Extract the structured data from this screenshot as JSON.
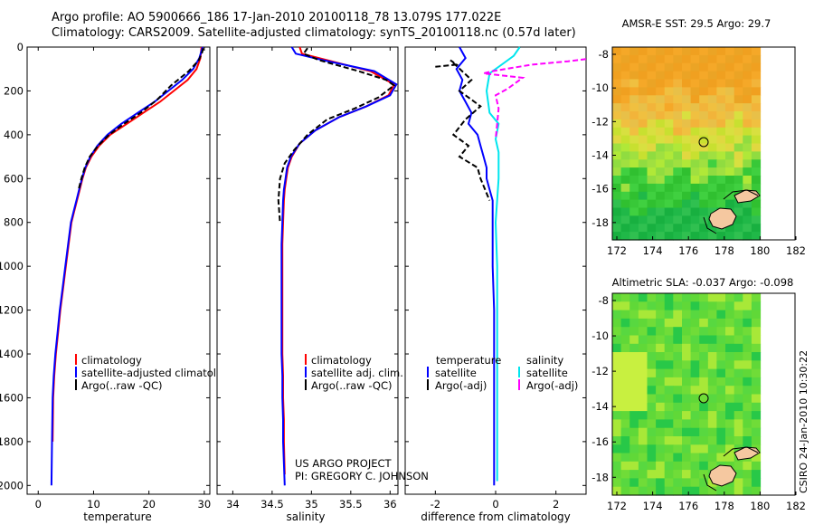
{
  "figure": {
    "title_line1": "Argo profile: AO 5900666_186 17-Jan-2010 20100118_78 13.079S 177.022E",
    "title_line2": "Climatology: CARS2009. Satellite-adjusted climatology: synTS_20100118.nc (0.57d later)",
    "credit_line1": "US ARGO PROJECT",
    "credit_line2": "PI: GREGORY C. JOHNSON",
    "stamp": "CSIRO 24-Jan-2010 10:30:22"
  },
  "colors": {
    "climatology": "#ff0000",
    "satellite": "#0000ff",
    "argo": "#000000",
    "salinity_satellite": "#00e5ee",
    "salinity_argo": "#ff00ff",
    "land": "#f5c8a0"
  },
  "chart_data": [
    {
      "type": "line",
      "id": "temperature",
      "xlabel": "temperature",
      "ylabel": "",
      "xlim": [
        -2,
        31
      ],
      "ylim": [
        2040,
        0
      ],
      "xticks": [
        "0",
        "10",
        "20",
        "30"
      ],
      "yticks": [
        "0",
        "200",
        "400",
        "600",
        "800",
        "1000",
        "1200",
        "1400",
        "1600",
        "1800",
        "2000"
      ],
      "legend": [
        "climatology",
        "satellite-adjusted climatology",
        "Argo(..raw -QC)"
      ],
      "series": [
        {
          "name": "climatology",
          "color": "#ff0000",
          "dash": "",
          "x": [
            29.5,
            29.3,
            28.6,
            27,
            24.5,
            22,
            19,
            16,
            13,
            11,
            9.6,
            8.6,
            8,
            7.5,
            7,
            6.5,
            6,
            5.5,
            5,
            4.5,
            4,
            3.6,
            3.2,
            2.9,
            2.7,
            2.6
          ],
          "y": [
            0,
            50,
            100,
            150,
            200,
            250,
            300,
            350,
            400,
            450,
            500,
            550,
            600,
            650,
            700,
            750,
            800,
            900,
            1000,
            1100,
            1200,
            1300,
            1400,
            1500,
            1600,
            1800
          ]
        },
        {
          "name": "satellite-adjusted climatology",
          "color": "#0000ff",
          "dash": "",
          "x": [
            29.7,
            29.1,
            28,
            26,
            23.5,
            21,
            18,
            15,
            12.5,
            10.7,
            9.4,
            8.5,
            7.9,
            7.4,
            6.9,
            6.4,
            5.9,
            5.4,
            4.9,
            4.4,
            3.9,
            3.5,
            3.1,
            2.8,
            2.6,
            2.5,
            2.4
          ],
          "y": [
            0,
            50,
            100,
            150,
            200,
            250,
            300,
            350,
            400,
            450,
            500,
            550,
            600,
            650,
            700,
            750,
            800,
            900,
            1000,
            1100,
            1200,
            1300,
            1400,
            1500,
            1600,
            1800,
            2000
          ]
        },
        {
          "name": "Argo(..raw -QC)",
          "color": "#000000",
          "dash": "6,3",
          "x": [
            29.8,
            29.6,
            29,
            27.2,
            24,
            21.5,
            18.5,
            15.5,
            12.8,
            10.8,
            9.3,
            8.4,
            7.8,
            7.3
          ],
          "y": [
            5,
            25,
            60,
            110,
            175,
            240,
            300,
            350,
            400,
            450,
            500,
            550,
            600,
            650
          ]
        }
      ]
    },
    {
      "type": "line",
      "id": "salinity",
      "xlabel": "salinity",
      "ylabel": "",
      "xlim": [
        33.8,
        36.1
      ],
      "ylim": [
        2040,
        0
      ],
      "xticks": [
        "34",
        "34.5",
        "35",
        "35.5",
        "36"
      ],
      "legend": [
        "climatology",
        "satellite adj. clim.",
        "Argo(..raw -QC)"
      ],
      "series": [
        {
          "name": "climatology",
          "color": "#ff0000",
          "dash": "",
          "x": [
            34.85,
            34.88,
            35.2,
            35.75,
            36.05,
            35.98,
            35.7,
            35.35,
            35.05,
            34.85,
            34.75,
            34.7,
            34.68,
            34.66,
            34.65,
            34.64,
            34.63,
            34.63,
            34.63,
            34.63,
            34.64,
            34.64,
            34.65,
            34.65,
            34.66
          ],
          "y": [
            0,
            30,
            60,
            110,
            170,
            220,
            270,
            320,
            380,
            440,
            500,
            550,
            600,
            650,
            700,
            800,
            900,
            1000,
            1200,
            1400,
            1500,
            1600,
            1700,
            1800,
            1950
          ]
        },
        {
          "name": "satellite adj. clim.",
          "color": "#0000ff",
          "dash": "",
          "x": [
            34.75,
            34.8,
            35.15,
            35.8,
            36.08,
            36,
            35.7,
            35.35,
            35.05,
            34.85,
            34.74,
            34.69,
            34.67,
            34.65,
            34.64,
            34.63,
            34.62,
            34.62,
            34.62,
            34.62,
            34.63,
            34.63,
            34.64,
            34.64,
            34.65,
            34.66
          ],
          "y": [
            0,
            30,
            60,
            110,
            170,
            220,
            270,
            320,
            380,
            440,
            500,
            550,
            600,
            650,
            700,
            800,
            900,
            1000,
            1200,
            1400,
            1500,
            1600,
            1700,
            1800,
            1900,
            2000
          ]
        },
        {
          "name": "Argo(..raw -QC)",
          "color": "#000000",
          "dash": "6,3",
          "x": [
            34.95,
            34.9,
            35.1,
            35.6,
            35.95,
            36.05,
            35.85,
            35.55,
            35.2,
            34.95,
            34.78,
            34.66,
            34.6,
            34.58,
            34.6
          ],
          "y": [
            5,
            30,
            60,
            110,
            150,
            175,
            230,
            280,
            330,
            400,
            470,
            530,
            600,
            700,
            800
          ]
        }
      ]
    },
    {
      "type": "line",
      "id": "difference",
      "xlabel": "difference from climatology",
      "ylabel": "",
      "xlim": [
        -3,
        3
      ],
      "ylim": [
        2040,
        0
      ],
      "xticks": [
        "-2",
        "0",
        "2"
      ],
      "legend_temperature": [
        "temperature",
        "satellite",
        "Argo(-adj)"
      ],
      "legend_salinity": [
        "salinity",
        "satellite",
        "Argo(-adj)"
      ],
      "series": [
        {
          "name": "temperature satellite",
          "color": "#0000ff",
          "dash": "",
          "x": [
            -1.2,
            -1.0,
            -1.3,
            -1.1,
            -1.2,
            -1.0,
            -0.8,
            -0.9,
            -0.6,
            -0.5,
            -0.4,
            -0.3,
            -0.3,
            -0.2,
            -0.1,
            -0.1,
            -0.1,
            -0.05,
            -0.05,
            -0.05,
            -0.05,
            -0.05
          ],
          "y": [
            0,
            50,
            100,
            150,
            200,
            250,
            300,
            350,
            400,
            450,
            500,
            550,
            600,
            650,
            700,
            800,
            1000,
            1200,
            1400,
            1600,
            1800,
            2000
          ]
        },
        {
          "name": "temperature Argo(-adj)",
          "color": "#000000",
          "dash": "6,3",
          "x": [
            -2.0,
            -1.3,
            -1.5,
            -0.8,
            -1.2,
            -0.5,
            -1.0,
            -1.4,
            -0.9,
            -1.2,
            -0.6,
            -0.5,
            -0.2
          ],
          "y": [
            90,
            80,
            60,
            150,
            200,
            270,
            330,
            400,
            450,
            500,
            550,
            600,
            700
          ]
        },
        {
          "name": "salinity satellite",
          "color": "#00e5ee",
          "dash": "",
          "x": [
            0.8,
            0.6,
            0.3,
            -0.2,
            -0.3,
            -0.2,
            0.1,
            0.0,
            0.1,
            0.1,
            0.0,
            0.05,
            0.05,
            0.05,
            0.05,
            0.05
          ],
          "y": [
            0,
            40,
            70,
            120,
            200,
            300,
            350,
            420,
            480,
            600,
            800,
            1000,
            1200,
            1500,
            1800,
            1980
          ]
        },
        {
          "name": "salinity Argo(-adj)",
          "color": "#ff00ff",
          "dash": "6,3",
          "x": [
            3.0,
            2.4,
            1.2,
            -0.1,
            -0.4,
            0.9,
            0.4,
            0.0,
            0.1,
            0.05,
            0.0
          ],
          "y": [
            55,
            65,
            80,
            110,
            120,
            140,
            190,
            220,
            280,
            350,
            420
          ]
        }
      ]
    }
  ],
  "maps": {
    "xticks": [
      "172",
      "174",
      "176",
      "178",
      "180",
      "182"
    ],
    "yticks": [
      "-8",
      "-10",
      "-12",
      "-14",
      "-16",
      "-18"
    ],
    "sst": {
      "title": "AMSR-E SST: 29.5 Argo: 29.7",
      "profile_lon": 177.02,
      "profile_lat": -13.08
    },
    "sla": {
      "title": "Altimetric SLA: -0.037 Argo: -0.098",
      "profile_lon": 177.02,
      "profile_lat": -13.08
    }
  }
}
